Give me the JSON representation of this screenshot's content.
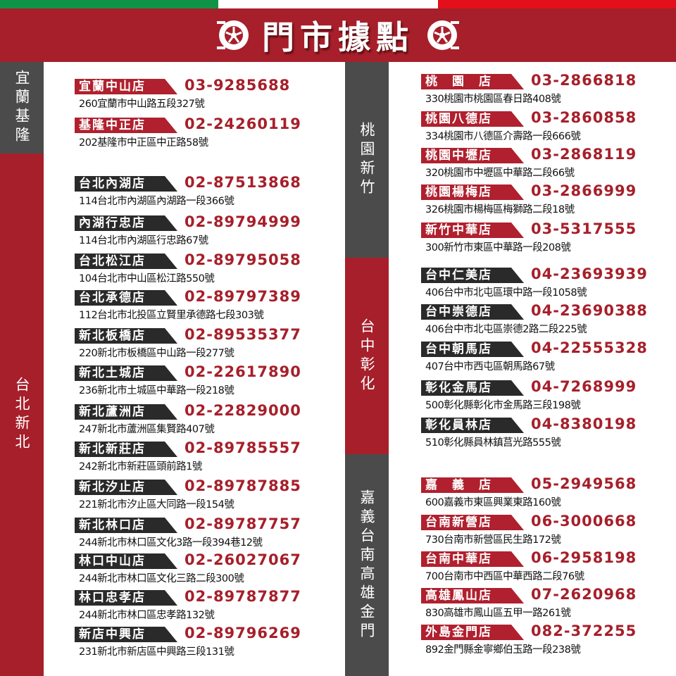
{
  "header": {
    "title": "門市據點",
    "colors": {
      "green": "#0f9447",
      "white": "#ffffff",
      "red": "#e3101b",
      "banner": "#a61f2a"
    }
  },
  "regions": [
    "宜蘭基隆",
    "台北新北",
    "桃園新竹",
    "台中彰化",
    "嘉義台南高雄金門"
  ],
  "left": [
    {
      "name": "宜蘭中山店",
      "phone": "03-9285688",
      "address": "260宜蘭市中山路五段327號",
      "style": "red"
    },
    {
      "name": "基隆中正店",
      "phone": "02-24260119",
      "address": "202基隆市中正區中正路58號",
      "style": "red"
    },
    {
      "name": "台北內湖店",
      "phone": "02-87513868",
      "address": "114台北市內湖區內湖路一段366號",
      "style": "dark"
    },
    {
      "name": "內湖行忠店",
      "phone": "02-89794999",
      "address": "114台北市內湖區行忠路67號",
      "style": "dark"
    },
    {
      "name": "台北松江店",
      "phone": "02-89795058",
      "address": "104台北市中山區松江路550號",
      "style": "dark"
    },
    {
      "name": "台北承德店",
      "phone": "02-89797389",
      "address": "112台北市北投區立賢里承德路七段303號",
      "style": "dark"
    },
    {
      "name": "新北板橋店",
      "phone": "02-89535377",
      "address": "220新北市板橋區中山路一段277號",
      "style": "dark"
    },
    {
      "name": "新北土城店",
      "phone": "02-22617890",
      "address": "236新北市土城區中華路一段218號",
      "style": "dark"
    },
    {
      "name": "新北蘆洲店",
      "phone": "02-22829000",
      "address": "247新北市蘆洲區集賢路407號",
      "style": "dark"
    },
    {
      "name": "新北新莊店",
      "phone": "02-89785557",
      "address": "242新北市新莊區頭前路1號",
      "style": "dark"
    },
    {
      "name": "新北汐止店",
      "phone": "02-89787885",
      "address": "221新北市汐止區大同路一段154號",
      "style": "dark"
    },
    {
      "name": "新北林口店",
      "phone": "02-89787757",
      "address": "244新北市林口區文化3路一段394巷12號",
      "style": "dark"
    },
    {
      "name": "林口中山店",
      "phone": "02-26027067",
      "address": "244新北市林口區文化三路二段300號",
      "style": "dark"
    },
    {
      "name": "林口忠孝店",
      "phone": "02-89787877",
      "address": "244新北市林口區忠孝路132號",
      "style": "dark"
    },
    {
      "name": "新店中興店",
      "phone": "02-89796269",
      "address": "231新北市新店區中興路三段131號",
      "style": "dark"
    }
  ],
  "right": [
    {
      "name": "桃　園　店",
      "phone": "03-2866818",
      "address": "330桃園市桃園區春日路408號",
      "style": "red"
    },
    {
      "name": "桃園八德店",
      "phone": "03-2860858",
      "address": "334桃園市八德區介壽路一段666號",
      "style": "red"
    },
    {
      "name": "桃園中壢店",
      "phone": "03-2868119",
      "address": "320桃園市中壢區中華路二段66號",
      "style": "red"
    },
    {
      "name": "桃園楊梅店",
      "phone": "03-2866999",
      "address": "326桃園市楊梅區梅獅路二段18號",
      "style": "red"
    },
    {
      "name": "新竹中華店",
      "phone": "03-5317555",
      "address": "300新竹市東區中華路一段208號",
      "style": "red"
    },
    {
      "name": "台中仁美店",
      "phone": "04-23693939",
      "address": "406台中市北屯區環中路一段1058號",
      "style": "dark"
    },
    {
      "name": "台中崇德店",
      "phone": "04-23690388",
      "address": "406台中市北屯區崇德2路二段225號",
      "style": "dark"
    },
    {
      "name": "台中朝馬店",
      "phone": "04-22555328",
      "address": "407台中市西屯區朝馬路67號",
      "style": "dark"
    },
    {
      "name": "彰化金馬店",
      "phone": "04-7268999",
      "address": "500彰化縣彰化市金馬路三段198號",
      "style": "dark"
    },
    {
      "name": "彰化員林店",
      "phone": "04-8380198",
      "address": "510彰化縣員林鎮莒光路555號",
      "style": "dark"
    },
    {
      "name": "嘉　義　店",
      "phone": "05-2949568",
      "address": "600嘉義市東區興業東路160號",
      "style": "red"
    },
    {
      "name": "台南新營店",
      "phone": "06-3000668",
      "address": "730台南市新營區民生路172號",
      "style": "red"
    },
    {
      "name": "台南中華店",
      "phone": "06-2958198",
      "address": "700台南市中西區中華西路二段76號",
      "style": "red"
    },
    {
      "name": "高雄鳳山店",
      "phone": "07-2620968",
      "address": "830高雄市鳳山區五甲一路261號",
      "style": "red"
    },
    {
      "name": "外島金門店",
      "phone": "082-372255",
      "address": "892金門縣金寧鄉伯玉路一段238號",
      "style": "red"
    }
  ]
}
